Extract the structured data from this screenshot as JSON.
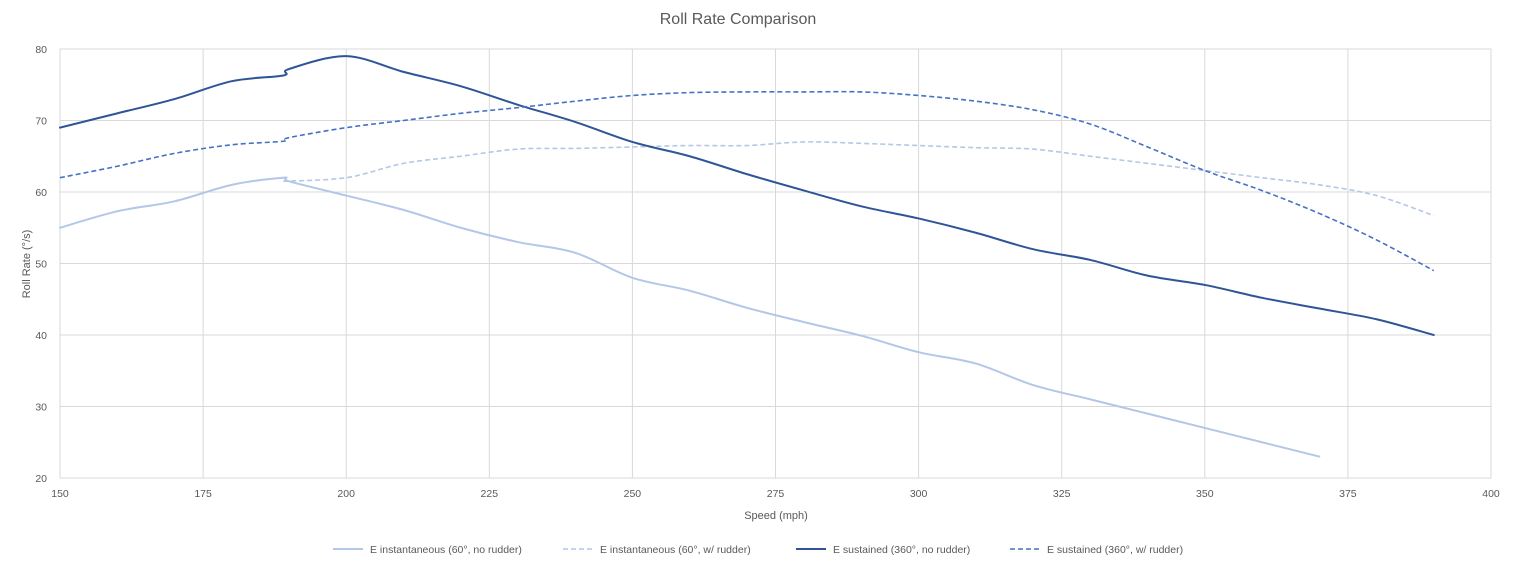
{
  "chart_data": {
    "type": "line",
    "title": "Roll Rate Comparison",
    "xlabel": "Speed (mph)",
    "ylabel": "Roll Rate (°/s)",
    "xlim": [
      150,
      400
    ],
    "ylim": [
      20,
      80
    ],
    "xticks": [
      150,
      175,
      200,
      225,
      250,
      275,
      300,
      325,
      350,
      375,
      400
    ],
    "yticks": [
      20,
      30,
      40,
      50,
      60,
      70,
      80
    ],
    "grid": true,
    "legend_position": "bottom",
    "series": [
      {
        "name": "E instantaneous (60°, no rudder)",
        "color": "#b4c7e7",
        "dash": "solid",
        "points": [
          [
            150,
            55
          ],
          [
            160,
            57.3
          ],
          [
            170,
            58.7
          ],
          [
            180,
            61
          ],
          [
            189,
            62
          ],
          [
            190,
            61.5
          ],
          [
            200,
            59.5
          ],
          [
            210,
            57.5
          ],
          [
            220,
            55
          ],
          [
            230,
            53
          ],
          [
            240,
            51.5
          ],
          [
            250,
            48
          ],
          [
            260,
            46.2
          ],
          [
            270,
            43.8
          ],
          [
            280,
            41.8
          ],
          [
            290,
            39.9
          ],
          [
            300,
            37.6
          ],
          [
            310,
            36
          ],
          [
            320,
            33
          ],
          [
            330,
            31
          ],
          [
            340,
            29
          ],
          [
            350,
            27
          ],
          [
            360,
            25
          ],
          [
            370,
            23
          ]
        ]
      },
      {
        "name": "E instantaneous (60°, w/ rudder)",
        "color": "#b4c7e7",
        "dash": "dashed",
        "points": [
          [
            189,
            61.5
          ],
          [
            200,
            62
          ],
          [
            210,
            64
          ],
          [
            220,
            65
          ],
          [
            230,
            66
          ],
          [
            240,
            66.1
          ],
          [
            250,
            66.3
          ],
          [
            260,
            66.5
          ],
          [
            270,
            66.5
          ],
          [
            280,
            67
          ],
          [
            290,
            66.8
          ],
          [
            300,
            66.5
          ],
          [
            310,
            66.2
          ],
          [
            320,
            66
          ],
          [
            330,
            65
          ],
          [
            340,
            64
          ],
          [
            350,
            63
          ],
          [
            360,
            62
          ],
          [
            370,
            61
          ],
          [
            380,
            59.5
          ],
          [
            390,
            56.7
          ]
        ]
      },
      {
        "name": "E sustained (360°, no rudder)",
        "color": "#2f5597",
        "dash": "solid",
        "points": [
          [
            150,
            69
          ],
          [
            160,
            71
          ],
          [
            170,
            73
          ],
          [
            180,
            75.5
          ],
          [
            189,
            76.3
          ],
          [
            190,
            77.2
          ],
          [
            200,
            79
          ],
          [
            210,
            76.8
          ],
          [
            220,
            74.8
          ],
          [
            230,
            72.2
          ],
          [
            240,
            69.8
          ],
          [
            250,
            67
          ],
          [
            260,
            65
          ],
          [
            270,
            62.5
          ],
          [
            280,
            60.2
          ],
          [
            290,
            58
          ],
          [
            300,
            56.3
          ],
          [
            310,
            54.3
          ],
          [
            320,
            52
          ],
          [
            330,
            50.5
          ],
          [
            340,
            48.3
          ],
          [
            350,
            47
          ],
          [
            360,
            45.2
          ],
          [
            370,
            43.7
          ],
          [
            380,
            42.2
          ],
          [
            390,
            40
          ]
        ]
      },
      {
        "name": "E sustained (360°, w/ rudder)",
        "color": "#4472c4",
        "dash": "dashed",
        "points": [
          [
            150,
            62
          ],
          [
            160,
            63.6
          ],
          [
            170,
            65.4
          ],
          [
            180,
            66.6
          ],
          [
            189,
            67.1
          ],
          [
            190,
            67.6
          ],
          [
            200,
            69
          ],
          [
            210,
            70
          ],
          [
            220,
            71
          ],
          [
            230,
            71.8
          ],
          [
            240,
            72.7
          ],
          [
            250,
            73.5
          ],
          [
            260,
            73.9
          ],
          [
            270,
            74
          ],
          [
            280,
            74
          ],
          [
            290,
            74
          ],
          [
            300,
            73.5
          ],
          [
            310,
            72.7
          ],
          [
            320,
            71.5
          ],
          [
            330,
            69.5
          ],
          [
            340,
            66.3
          ],
          [
            350,
            63
          ],
          [
            360,
            60.2
          ],
          [
            370,
            57
          ],
          [
            380,
            53.3
          ],
          [
            390,
            49
          ]
        ]
      }
    ]
  }
}
